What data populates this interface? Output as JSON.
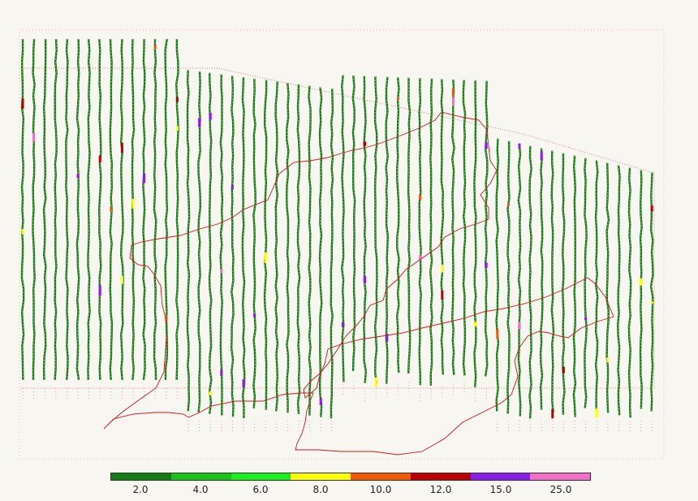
{
  "map": {
    "colors": {
      "background": "#f8f6f1",
      "line_dark": "#1e6e1e",
      "line_mid": "#2fb52f",
      "line_light": "#7cf07c",
      "boundary": "#d01818",
      "extent": "#e06060"
    }
  },
  "legend": {
    "items": [
      {
        "color": "#137d13",
        "label": "2.0"
      },
      {
        "color": "#18c418",
        "label": "4.0"
      },
      {
        "color": "#1cf01c",
        "label": "6.0"
      },
      {
        "color": "#ffff00",
        "label": "8.0"
      },
      {
        "color": "#f05a00",
        "label": "10.0"
      },
      {
        "color": "#bc0000",
        "label": "12.0"
      },
      {
        "color": "#8a1ee6",
        "label": "15.0"
      },
      {
        "color": "#f070c8",
        "label": "25.0"
      }
    ]
  }
}
